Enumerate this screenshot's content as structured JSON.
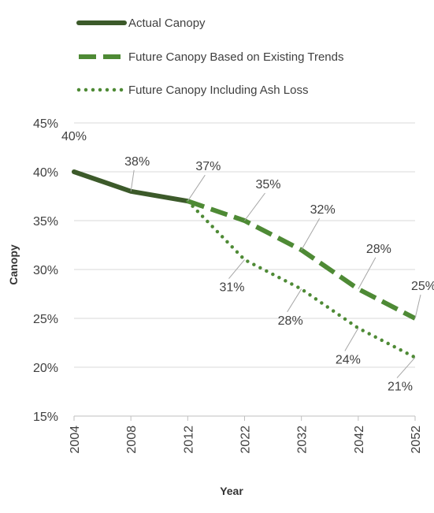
{
  "chart_data": {
    "type": "line",
    "title": "",
    "xlabel": "Year",
    "ylabel": "Canopy",
    "categories": [
      "2004",
      "2008",
      "2012",
      "2022",
      "2032",
      "2042",
      "2052"
    ],
    "y_ticks": [
      "15%",
      "20%",
      "25%",
      "30%",
      "35%",
      "40%",
      "45%"
    ],
    "ylim": [
      15,
      45
    ],
    "grid": true,
    "legend_position": "top",
    "series": [
      {
        "name": "Actual Canopy",
        "style": "solid",
        "color": "#3c5a2a",
        "x": [
          "2004",
          "2008",
          "2012"
        ],
        "values": [
          40,
          38,
          37
        ],
        "labels": [
          "40%",
          "38%",
          "37%"
        ]
      },
      {
        "name": "Future Canopy Based on Existing Trends",
        "style": "dashed",
        "color": "#4e8a35",
        "x": [
          "2012",
          "2022",
          "2032",
          "2042",
          "2052"
        ],
        "values": [
          37,
          35,
          32,
          28,
          25
        ],
        "labels": [
          "",
          "35%",
          "32%",
          "28%",
          "25%"
        ]
      },
      {
        "name": "Future Canopy Including Ash Loss",
        "style": "dotted",
        "color": "#4e8a35",
        "x": [
          "2012",
          "2022",
          "2032",
          "2042",
          "2052"
        ],
        "values": [
          37,
          31,
          28,
          24,
          21
        ],
        "labels": [
          "",
          "31%",
          "28%",
          "24%",
          "21%"
        ]
      }
    ]
  }
}
